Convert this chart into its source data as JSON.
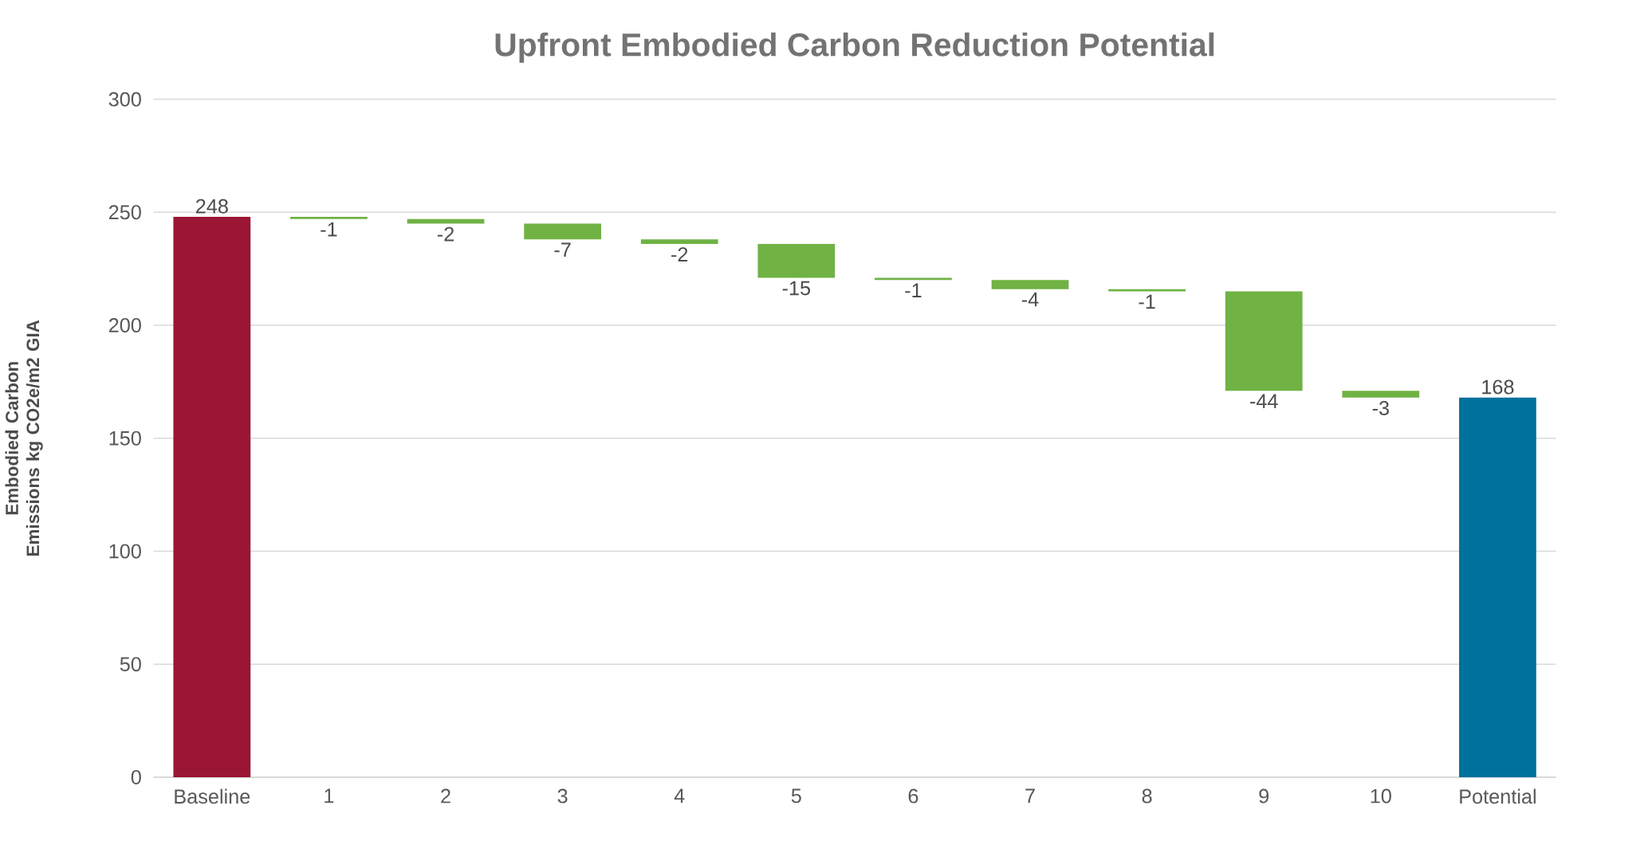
{
  "chart_data": {
    "type": "bar",
    "title": "Upfront Embodied Carbon Reduction Potential",
    "ylabel": "Embodied Carbon Emissions kg CO2e/m2 GIA",
    "categories": [
      "Baseline",
      "1",
      "2",
      "3",
      "4",
      "5",
      "6",
      "7",
      "8",
      "9",
      "10",
      "Potential"
    ],
    "values": [
      248,
      -1,
      -2,
      -7,
      -2,
      -15,
      -1,
      -4,
      -1,
      -44,
      -3,
      168
    ],
    "base": [
      0,
      248,
      247,
      245,
      238,
      236,
      221,
      220,
      216,
      215,
      171,
      0
    ],
    "colors": [
      "#9b1535",
      "#70b244",
      "#70b244",
      "#70b244",
      "#70b244",
      "#70b244",
      "#70b244",
      "#70b244",
      "#70b244",
      "#70b244",
      "#70b244",
      "#00719c"
    ],
    "ylim": [
      0,
      300
    ],
    "yticks": [
      0,
      50,
      100,
      150,
      200,
      250,
      300
    ],
    "grid": "y",
    "data_labels": true
  }
}
